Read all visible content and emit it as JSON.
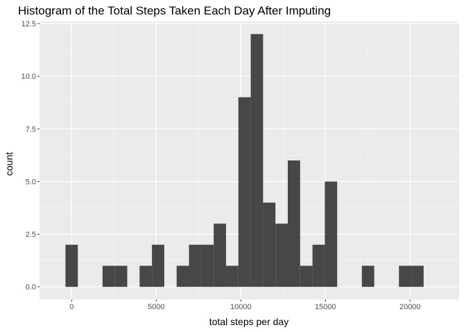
{
  "chart_data": {
    "type": "bar",
    "title": "Histogram of the Total Steps Taken Each Day After Imputing",
    "xlabel": "total steps per day",
    "ylabel": "count",
    "xlim": [
      -1900,
      22900
    ],
    "ylim": [
      -0.6,
      12.6
    ],
    "x_ticks": [
      0,
      5000,
      10000,
      15000,
      20000
    ],
    "x_tick_labels": [
      "0",
      "5000",
      "10000",
      "15000",
      "20000"
    ],
    "x_minor_ticks": [
      2500,
      7500,
      12500,
      17500
    ],
    "y_ticks": [
      0,
      2.5,
      5,
      7.5,
      10,
      12.5
    ],
    "y_tick_labels": [
      "0.0",
      "2.5",
      "5.0",
      "7.5",
      "10.0",
      "12.5"
    ],
    "y_minor_ticks": [
      1.25,
      3.75,
      6.25,
      8.75,
      11.25
    ],
    "grid": true,
    "bin_width": 730,
    "bins": [
      {
        "x": 0,
        "count": 2
      },
      {
        "x": 730,
        "count": 0
      },
      {
        "x": 1460,
        "count": 0
      },
      {
        "x": 2190,
        "count": 1
      },
      {
        "x": 2920,
        "count": 1
      },
      {
        "x": 3650,
        "count": 0
      },
      {
        "x": 4380,
        "count": 1
      },
      {
        "x": 5110,
        "count": 2
      },
      {
        "x": 5840,
        "count": 0
      },
      {
        "x": 6570,
        "count": 1
      },
      {
        "x": 7300,
        "count": 2
      },
      {
        "x": 8030,
        "count": 2
      },
      {
        "x": 8760,
        "count": 3
      },
      {
        "x": 9490,
        "count": 1
      },
      {
        "x": 10220,
        "count": 9
      },
      {
        "x": 10950,
        "count": 12
      },
      {
        "x": 11680,
        "count": 4
      },
      {
        "x": 12410,
        "count": 3
      },
      {
        "x": 13140,
        "count": 6
      },
      {
        "x": 13870,
        "count": 1
      },
      {
        "x": 14600,
        "count": 2
      },
      {
        "x": 15330,
        "count": 5
      },
      {
        "x": 16060,
        "count": 0
      },
      {
        "x": 16790,
        "count": 0
      },
      {
        "x": 17520,
        "count": 1
      },
      {
        "x": 18250,
        "count": 0
      },
      {
        "x": 18980,
        "count": 0
      },
      {
        "x": 19710,
        "count": 1
      },
      {
        "x": 20440,
        "count": 1
      }
    ],
    "colors": {
      "panel": "#ebebeb",
      "grid_major": "#ffffff",
      "bar": "#474747",
      "tick": "#333333"
    }
  }
}
